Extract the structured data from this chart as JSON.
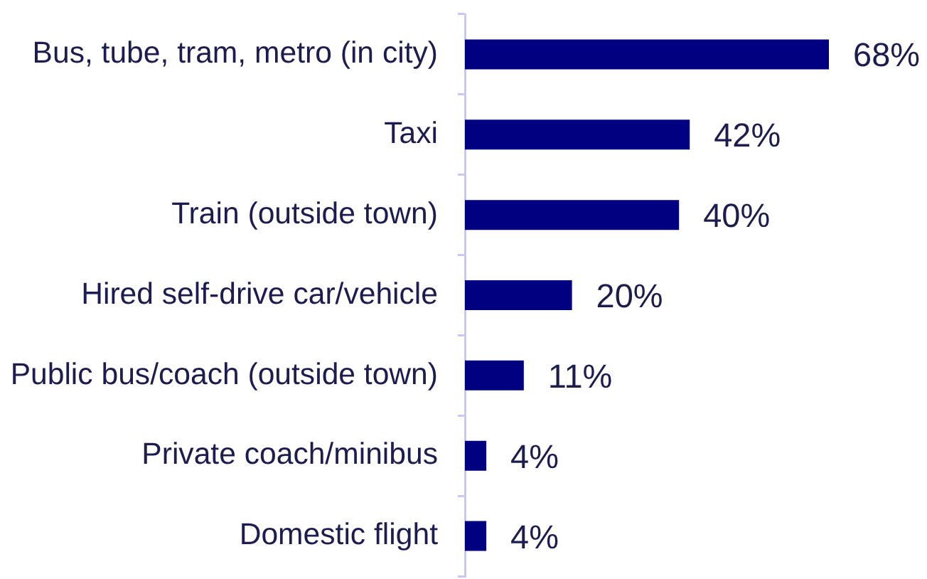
{
  "chart_data": {
    "type": "bar",
    "orientation": "horizontal",
    "categories": [
      "Bus, tube, tram, metro (in city)",
      "Taxi",
      "Train (outside town)",
      "Hired self-drive car/vehicle",
      "Public bus/coach (outside town)",
      "Private coach/minibus",
      "Domestic flight"
    ],
    "values": [
      68,
      42,
      40,
      20,
      11,
      4,
      4
    ],
    "color": "#000080",
    "value_labels": [
      "68%",
      "42%",
      "40%",
      "20%",
      "11%",
      "4%",
      "4%"
    ],
    "tick_labels": "y"
  }
}
